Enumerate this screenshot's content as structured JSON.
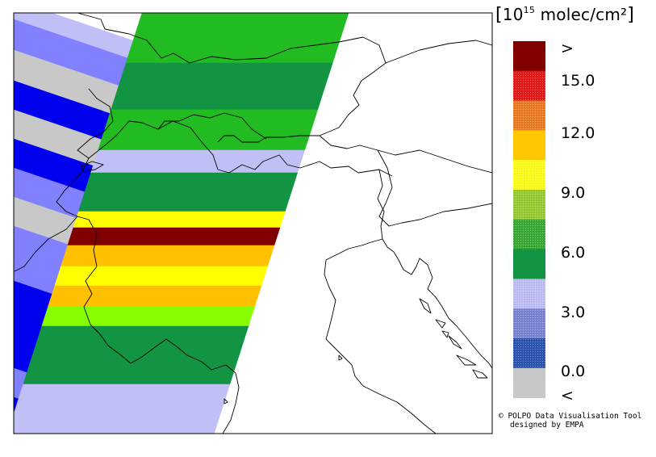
{
  "legend": {
    "unit_open": "[",
    "unit_base": "10",
    "unit_exp": "15",
    "unit_rest": " molec/cm²",
    "unit_close": "]",
    "bins": [
      {
        "color": "#800000",
        "pattern": false
      },
      {
        "color": "#e61a1a",
        "pattern": true
      },
      {
        "color": "#ed7d24",
        "pattern": true
      },
      {
        "color": "#ffc800",
        "pattern": false
      },
      {
        "color": "#ffff19",
        "pattern": true
      },
      {
        "color": "#99cc33",
        "pattern": true
      },
      {
        "color": "#3aaa35",
        "pattern": true
      },
      {
        "color": "#129442",
        "pattern": false
      },
      {
        "color": "#c0c0f7",
        "pattern": true
      },
      {
        "color": "#7b85d6",
        "pattern": true
      },
      {
        "color": "#2d56b3",
        "pattern": true
      },
      {
        "color": "#c8c8c8",
        "pattern": false
      }
    ],
    "labels": [
      ">",
      "15.0",
      "12.0",
      "9.0",
      "6.0",
      "3.0",
      "0.0",
      "<"
    ]
  },
  "credit": {
    "line1": "© POLPO Data Visualisation Tool",
    "line2": "designed by EMPA"
  },
  "swath_colors": {
    "blue": "#0000ee",
    "grey": "#c8c8c8",
    "light_blue": "#8181ff",
    "lavender": "#c0c0f7",
    "green": "#129442",
    "bright_green": "#22bb22",
    "yellow": "#ffff00",
    "orange": "#ffc000",
    "dark_red": "#800000",
    "lime": "#88ff00"
  }
}
